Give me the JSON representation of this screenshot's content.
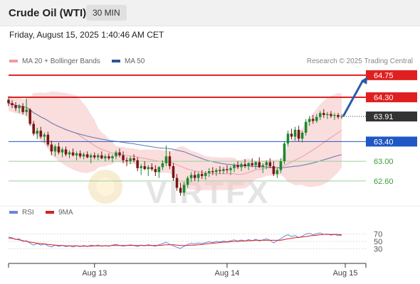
{
  "header": {
    "title": "Crude Oil (WTI)",
    "timeframe": "30 MIN"
  },
  "datetime": "Friday, August 15, 2025 1:40:46 AM CET",
  "legend": {
    "bollinger": "MA 20 + Bollinger Bands",
    "ma50": "MA 50"
  },
  "credit": "Research © 2025 Trading Central",
  "watermark": "VIRTFX",
  "colors": {
    "resistance": "#e02020",
    "support": "#1f58c4",
    "target": "#3a9a3a",
    "current": "#333333",
    "candle_up": "#1a8a2e",
    "candle_down": "#7a1515",
    "bollinger_band": "#f6c6c6",
    "ma20": "#e8a0a0",
    "ma50": "#5a7ab0",
    "rsi": "#6b86d8",
    "rsi_ma": "#d62020",
    "arrow": "#2a5ba8"
  },
  "price_levels": [
    {
      "value": 64.75,
      "label": "64.75",
      "kind": "resistance"
    },
    {
      "value": 64.3,
      "label": "64.30",
      "kind": "resistance"
    },
    {
      "value": 63.91,
      "label": "63.91",
      "kind": "current"
    },
    {
      "value": 63.4,
      "label": "63.40",
      "kind": "support"
    },
    {
      "value": 63.0,
      "label": "63.00",
      "kind": "target"
    },
    {
      "value": 62.6,
      "label": "62.60",
      "kind": "target"
    }
  ],
  "rsi_panel": {
    "legend_rsi": "RSI",
    "legend_ma": "9MA",
    "levels": [
      {
        "value": 70,
        "label": "70"
      },
      {
        "value": 50,
        "label": "50"
      },
      {
        "value": 30,
        "label": "30"
      }
    ]
  },
  "x_axis_labels": [
    "Aug 13",
    "Aug 14",
    "Aug 15"
  ],
  "chart_data": {
    "type": "candlestick",
    "title": "Crude Oil (WTI)",
    "timeframe": "30 MIN",
    "ylim": [
      62.15,
      64.95
    ],
    "x_ticks": [
      {
        "label": "Aug 13",
        "index": 24
      },
      {
        "label": "Aug 14",
        "index": 61
      },
      {
        "label": "Aug 15",
        "index": 94
      }
    ],
    "candles": [
      [
        64.25,
        64.32,
        64.12,
        64.18
      ],
      [
        64.18,
        64.24,
        64.08,
        64.14
      ],
      [
        64.14,
        64.2,
        64.02,
        64.08
      ],
      [
        64.08,
        64.16,
        63.98,
        64.12
      ],
      [
        64.12,
        64.18,
        63.95,
        64.0
      ],
      [
        64.0,
        64.28,
        63.92,
        64.05
      ],
      [
        64.05,
        64.08,
        63.72,
        63.76
      ],
      [
        63.76,
        63.82,
        63.52,
        63.56
      ],
      [
        63.56,
        63.68,
        63.45,
        63.62
      ],
      [
        63.62,
        63.7,
        63.46,
        63.5
      ],
      [
        63.5,
        63.58,
        63.38,
        63.54
      ],
      [
        63.54,
        63.6,
        63.3,
        63.34
      ],
      [
        63.34,
        63.42,
        63.12,
        63.2
      ],
      [
        63.2,
        63.34,
        63.1,
        63.3
      ],
      [
        63.3,
        63.38,
        63.14,
        63.18
      ],
      [
        63.18,
        63.28,
        63.08,
        63.24
      ],
      [
        63.24,
        63.3,
        63.1,
        63.14
      ],
      [
        63.14,
        63.22,
        63.06,
        63.18
      ],
      [
        63.18,
        63.26,
        63.1,
        63.12
      ],
      [
        63.12,
        63.2,
        63.02,
        63.16
      ],
      [
        63.16,
        63.22,
        63.06,
        63.1
      ],
      [
        63.1,
        63.18,
        63.04,
        63.14
      ],
      [
        63.14,
        63.2,
        63.06,
        63.08
      ],
      [
        63.08,
        63.16,
        62.96,
        63.12
      ],
      [
        63.12,
        63.18,
        63.04,
        63.08
      ],
      [
        63.08,
        63.16,
        63.02,
        63.12
      ],
      [
        63.12,
        63.2,
        63.04,
        63.06
      ],
      [
        63.06,
        63.14,
        63.0,
        63.1
      ],
      [
        63.1,
        63.16,
        63.02,
        63.06
      ],
      [
        63.06,
        63.14,
        62.98,
        63.1
      ],
      [
        63.1,
        63.22,
        63.04,
        63.18
      ],
      [
        63.18,
        63.26,
        63.08,
        63.12
      ],
      [
        63.12,
        63.2,
        62.96,
        63.02
      ],
      [
        63.02,
        63.08,
        62.9,
        63.0
      ],
      [
        63.0,
        63.1,
        62.94,
        63.06
      ],
      [
        63.06,
        63.14,
        62.98,
        63.02
      ],
      [
        63.02,
        63.08,
        62.8,
        62.86
      ],
      [
        62.86,
        62.94,
        62.72,
        62.9
      ],
      [
        62.9,
        63.0,
        62.82,
        62.84
      ],
      [
        62.84,
        62.92,
        62.7,
        62.88
      ],
      [
        62.88,
        62.96,
        62.8,
        62.84
      ],
      [
        62.84,
        62.92,
        62.7,
        62.78
      ],
      [
        62.78,
        62.9,
        62.66,
        62.88
      ],
      [
        62.88,
        63.02,
        62.82,
        62.96
      ],
      [
        62.96,
        63.32,
        62.9,
        63.1
      ],
      [
        63.1,
        63.2,
        62.84,
        62.9
      ],
      [
        62.9,
        62.96,
        62.6,
        62.66
      ],
      [
        62.66,
        62.74,
        62.4,
        62.46
      ],
      [
        62.46,
        62.56,
        62.3,
        62.36
      ],
      [
        62.36,
        62.58,
        62.3,
        62.52
      ],
      [
        62.52,
        62.7,
        62.46,
        62.66
      ],
      [
        62.66,
        62.78,
        62.58,
        62.72
      ],
      [
        62.72,
        62.8,
        62.6,
        62.66
      ],
      [
        62.66,
        62.78,
        62.58,
        62.74
      ],
      [
        62.74,
        62.82,
        62.64,
        62.7
      ],
      [
        62.7,
        62.8,
        62.62,
        62.76
      ],
      [
        62.76,
        62.86,
        62.68,
        62.8
      ],
      [
        62.8,
        62.88,
        62.72,
        62.78
      ],
      [
        62.78,
        62.86,
        62.7,
        62.82
      ],
      [
        62.82,
        62.9,
        62.74,
        62.8
      ],
      [
        62.8,
        62.88,
        62.74,
        62.84
      ],
      [
        62.84,
        62.92,
        62.76,
        62.82
      ],
      [
        62.82,
        62.9,
        62.72,
        62.86
      ],
      [
        62.86,
        62.96,
        62.78,
        62.92
      ],
      [
        62.92,
        63.0,
        62.84,
        62.88
      ],
      [
        62.88,
        62.98,
        62.8,
        62.94
      ],
      [
        62.94,
        63.04,
        62.86,
        62.9
      ],
      [
        62.9,
        62.98,
        62.82,
        62.96
      ],
      [
        62.96,
        63.06,
        62.88,
        62.92
      ],
      [
        62.92,
        63.0,
        62.84,
        62.98
      ],
      [
        62.98,
        63.08,
        62.86,
        62.88
      ],
      [
        62.88,
        62.96,
        62.76,
        62.92
      ],
      [
        62.92,
        63.02,
        62.84,
        62.98
      ],
      [
        62.98,
        63.06,
        62.86,
        62.9
      ],
      [
        62.9,
        63.0,
        62.7,
        62.74
      ],
      [
        62.74,
        62.86,
        62.66,
        62.82
      ],
      [
        62.82,
        63.06,
        62.76,
        63.0
      ],
      [
        63.0,
        63.4,
        62.94,
        63.36
      ],
      [
        63.36,
        63.62,
        63.3,
        63.56
      ],
      [
        63.56,
        63.66,
        63.44,
        63.5
      ],
      [
        63.5,
        63.7,
        63.42,
        63.64
      ],
      [
        63.64,
        63.72,
        63.4,
        63.46
      ],
      [
        63.46,
        63.62,
        63.38,
        63.58
      ],
      [
        63.58,
        63.86,
        63.52,
        63.8
      ],
      [
        63.8,
        63.92,
        63.72,
        63.86
      ],
      [
        63.86,
        63.94,
        63.76,
        63.82
      ],
      [
        63.82,
        63.96,
        63.78,
        63.9
      ],
      [
        63.9,
        64.02,
        63.84,
        63.98
      ],
      [
        63.98,
        64.06,
        63.88,
        63.94
      ],
      [
        63.94,
        64.0,
        63.86,
        63.96
      ],
      [
        63.96,
        64.02,
        63.88,
        63.92
      ],
      [
        63.92,
        63.98,
        63.84,
        63.94
      ],
      [
        63.94,
        63.98,
        63.86,
        63.9
      ],
      [
        63.9,
        63.96,
        63.86,
        63.91
      ]
    ],
    "rsi": [
      62,
      60,
      55,
      57,
      50,
      52,
      45,
      40,
      44,
      40,
      43,
      38,
      35,
      40,
      37,
      39,
      36,
      38,
      35,
      38,
      36,
      39,
      36,
      40,
      38,
      40,
      37,
      39,
      37,
      40,
      42,
      39,
      37,
      39,
      41,
      39,
      36,
      40,
      38,
      41,
      39,
      37,
      41,
      44,
      48,
      42,
      38,
      34,
      31,
      37,
      42,
      45,
      43,
      46,
      44,
      47,
      49,
      47,
      50,
      48,
      51,
      49,
      52,
      54,
      51,
      54,
      51,
      55,
      52,
      56,
      51,
      54,
      57,
      53,
      46,
      52,
      57,
      64,
      68,
      63,
      66,
      60,
      64,
      70,
      72,
      68,
      71,
      73,
      69,
      70,
      67,
      69,
      66,
      67
    ],
    "rsi_ma": [
      59,
      58,
      56,
      54,
      52,
      50,
      48,
      47,
      45,
      44,
      43,
      42,
      41,
      40,
      39,
      39,
      38,
      38,
      38,
      38,
      37,
      37,
      37,
      37,
      38,
      38,
      38,
      38,
      38,
      39,
      39,
      39,
      39,
      39,
      39,
      39,
      39,
      39,
      39,
      39,
      39,
      39,
      39,
      40,
      41,
      41,
      41,
      40,
      39,
      39,
      39,
      40,
      40,
      41,
      42,
      43,
      44,
      45,
      46,
      47,
      48,
      48,
      49,
      50,
      50,
      51,
      51,
      52,
      52,
      53,
      53,
      53,
      53,
      53,
      53,
      53,
      53,
      55,
      57,
      58,
      60,
      61,
      62,
      63,
      65,
      66,
      67,
      68,
      69,
      69,
      69,
      69,
      69,
      68
    ]
  }
}
